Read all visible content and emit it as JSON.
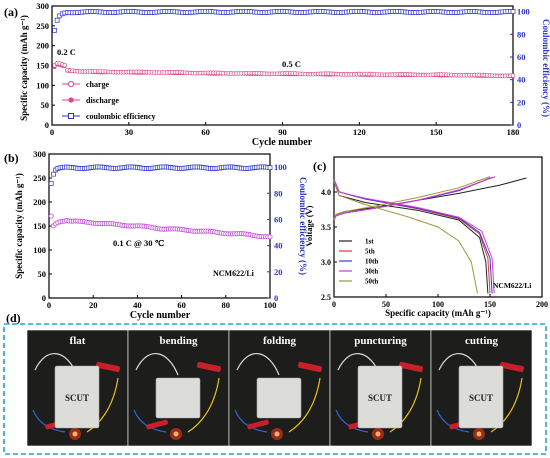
{
  "colors": {
    "charge": "#e0458a",
    "discharge": "#e0458a",
    "ce_a": "#2a33c9",
    "cap_b": "#c24ad8",
    "ce_b": "#2a33c9",
    "v_1st": "#222222",
    "v_5th": "#e23a3a",
    "v_10th": "#3a3ad6",
    "v_30th": "#d23ad6",
    "v_50th": "#9a9a3a",
    "photo_bg": "#1d1d1b",
    "dashed_border": "#2aa0d8"
  },
  "chart_data": [
    {
      "id": "a",
      "type": "scatter",
      "panel_label": "(a)",
      "xlabel": "Cycle number",
      "ylabel_left": "Specific capacity (mAh g⁻¹)",
      "ylabel_right": "Coulombic efficiency (%)",
      "xlim": [
        0,
        180
      ],
      "ylim_left": [
        0,
        300
      ],
      "ylim_right": [
        0,
        105
      ],
      "xticks": [
        0,
        30,
        60,
        90,
        120,
        150,
        180
      ],
      "yticks_left": [
        0,
        50,
        100,
        150,
        200,
        250,
        300
      ],
      "yticks_right": [
        0,
        20,
        40,
        60,
        80,
        100
      ],
      "annotations": [
        "0.2 C",
        "0.5 C"
      ],
      "legend": [
        "charge",
        "discharge",
        "coulombic efficiency"
      ],
      "series": [
        {
          "name": "charge",
          "axis": "left",
          "x": [
            1,
            2,
            3,
            4,
            5,
            6,
            10,
            20,
            40,
            60,
            80,
            100,
            120,
            140,
            160,
            180
          ],
          "y": [
            150,
            155,
            154,
            152,
            150,
            138,
            136,
            134,
            133,
            131,
            130,
            129,
            128,
            127,
            126,
            124
          ]
        },
        {
          "name": "discharge",
          "axis": "left",
          "x": [
            1,
            2,
            3,
            4,
            5,
            6,
            10,
            20,
            40,
            60,
            80,
            100,
            120,
            140,
            160,
            180
          ],
          "y": [
            146,
            153,
            152,
            150,
            149,
            137,
            135,
            133,
            132,
            130,
            129,
            128,
            127,
            126,
            125,
            123
          ]
        },
        {
          "name": "coulombic efficiency",
          "axis": "right",
          "x": [
            1,
            2,
            3,
            4,
            5,
            6,
            10,
            20,
            40,
            60,
            80,
            100,
            120,
            140,
            160,
            180
          ],
          "y": [
            83,
            92,
            96,
            98,
            99,
            99.5,
            99.6,
            99.7,
            99.7,
            99.8,
            99.8,
            99.7,
            99.8,
            99.7,
            99.7,
            99.6
          ]
        }
      ]
    },
    {
      "id": "b",
      "type": "scatter",
      "panel_label": "(b)",
      "xlabel": "Cycle number",
      "ylabel_left": "Specific capacity (mAh g⁻¹)",
      "ylabel_right": "Coulombic efficiency (%)",
      "xlim": [
        0,
        100
      ],
      "ylim_left": [
        0,
        300
      ],
      "ylim_right": [
        0,
        110
      ],
      "xticks": [
        0,
        20,
        40,
        60,
        80,
        100
      ],
      "yticks_left": [
        0,
        50,
        100,
        150,
        200,
        250,
        300
      ],
      "yticks_right": [
        0,
        20,
        40,
        60,
        80,
        100
      ],
      "annotations": [
        "0.1 C @ 30 ℃",
        "NCM622/Li"
      ],
      "series": [
        {
          "name": "capacity",
          "axis": "left",
          "x": [
            1,
            2,
            3,
            5,
            8,
            10,
            20,
            30,
            40,
            50,
            60,
            70,
            80,
            90,
            100
          ],
          "y": [
            170,
            150,
            155,
            160,
            162,
            160,
            157,
            153,
            150,
            145,
            142,
            139,
            135,
            132,
            127
          ]
        },
        {
          "name": "coulombic efficiency",
          "axis": "right",
          "x": [
            1,
            2,
            3,
            4,
            6,
            10,
            20,
            30,
            40,
            50,
            60,
            70,
            80,
            90,
            100
          ],
          "y": [
            88,
            95,
            98,
            99,
            99.3,
            99.5,
            99.5,
            99.6,
            99.5,
            99.5,
            99.6,
            99.5,
            99.5,
            99.6,
            99.5
          ]
        }
      ]
    },
    {
      "id": "c",
      "type": "line",
      "panel_label": "(c)",
      "xlabel": "Specific capacity (mAh g⁻¹)",
      "ylabel": "Voltage (V)",
      "xlim": [
        0,
        200
      ],
      "ylim": [
        2.5,
        4.5
      ],
      "xticks": [
        0,
        50,
        100,
        150,
        200
      ],
      "yticks": [
        2.5,
        3.0,
        3.5,
        4.0
      ],
      "annotations": [
        "NCM622/Li"
      ],
      "series": [
        {
          "name": "1st",
          "charge_x": [
            0,
            2,
            10,
            40,
            80,
            120,
            160,
            185
          ],
          "charge_y": [
            3.6,
            3.68,
            3.72,
            3.78,
            3.88,
            3.98,
            4.1,
            4.2
          ],
          "discharge_x": [
            0,
            5,
            30,
            80,
            120,
            140,
            146,
            148
          ],
          "discharge_y": [
            4.15,
            3.95,
            3.85,
            3.74,
            3.6,
            3.35,
            3.0,
            2.55
          ]
        },
        {
          "name": "5th",
          "charge_x": [
            0,
            2,
            10,
            40,
            80,
            120,
            150
          ],
          "charge_y": [
            3.6,
            3.66,
            3.7,
            3.77,
            3.88,
            4.02,
            4.2
          ],
          "discharge_x": [
            0,
            5,
            30,
            80,
            120,
            140,
            148,
            150
          ],
          "discharge_y": [
            4.18,
            4.0,
            3.9,
            3.76,
            3.62,
            3.4,
            3.05,
            2.55
          ]
        },
        {
          "name": "10th",
          "charge_x": [
            0,
            2,
            10,
            40,
            80,
            120,
            152
          ],
          "charge_y": [
            3.6,
            3.66,
            3.7,
            3.77,
            3.88,
            4.02,
            4.21
          ],
          "discharge_x": [
            0,
            5,
            30,
            80,
            120,
            140,
            150,
            152
          ],
          "discharge_y": [
            4.18,
            4.0,
            3.9,
            3.77,
            3.63,
            3.42,
            3.05,
            2.55
          ]
        },
        {
          "name": "30th",
          "charge_x": [
            0,
            2,
            10,
            40,
            80,
            120,
            155
          ],
          "charge_y": [
            3.6,
            3.66,
            3.7,
            3.77,
            3.88,
            4.03,
            4.22
          ],
          "discharge_x": [
            0,
            5,
            30,
            80,
            120,
            142,
            152,
            154
          ],
          "discharge_y": [
            4.18,
            4.0,
            3.91,
            3.78,
            3.64,
            3.44,
            3.05,
            2.55
          ]
        },
        {
          "name": "50th",
          "charge_x": [
            0,
            2,
            10,
            40,
            80,
            120,
            150
          ],
          "charge_y": [
            3.62,
            3.68,
            3.72,
            3.8,
            3.92,
            4.06,
            4.22
          ],
          "discharge_x": [
            0,
            5,
            30,
            70,
            100,
            120,
            132,
            138
          ],
          "discharge_y": [
            4.15,
            3.95,
            3.82,
            3.65,
            3.5,
            3.3,
            3.0,
            2.55
          ]
        }
      ]
    }
  ],
  "photos": {
    "panel_label": "(d)",
    "items": [
      {
        "caption": "flat",
        "pouch_text": "SCUT"
      },
      {
        "caption": "bending",
        "pouch_text": ""
      },
      {
        "caption": "folding",
        "pouch_text": ""
      },
      {
        "caption": "puncturing",
        "pouch_text": "SCUT"
      },
      {
        "caption": "cutting",
        "pouch_text": "SCUT"
      }
    ]
  }
}
